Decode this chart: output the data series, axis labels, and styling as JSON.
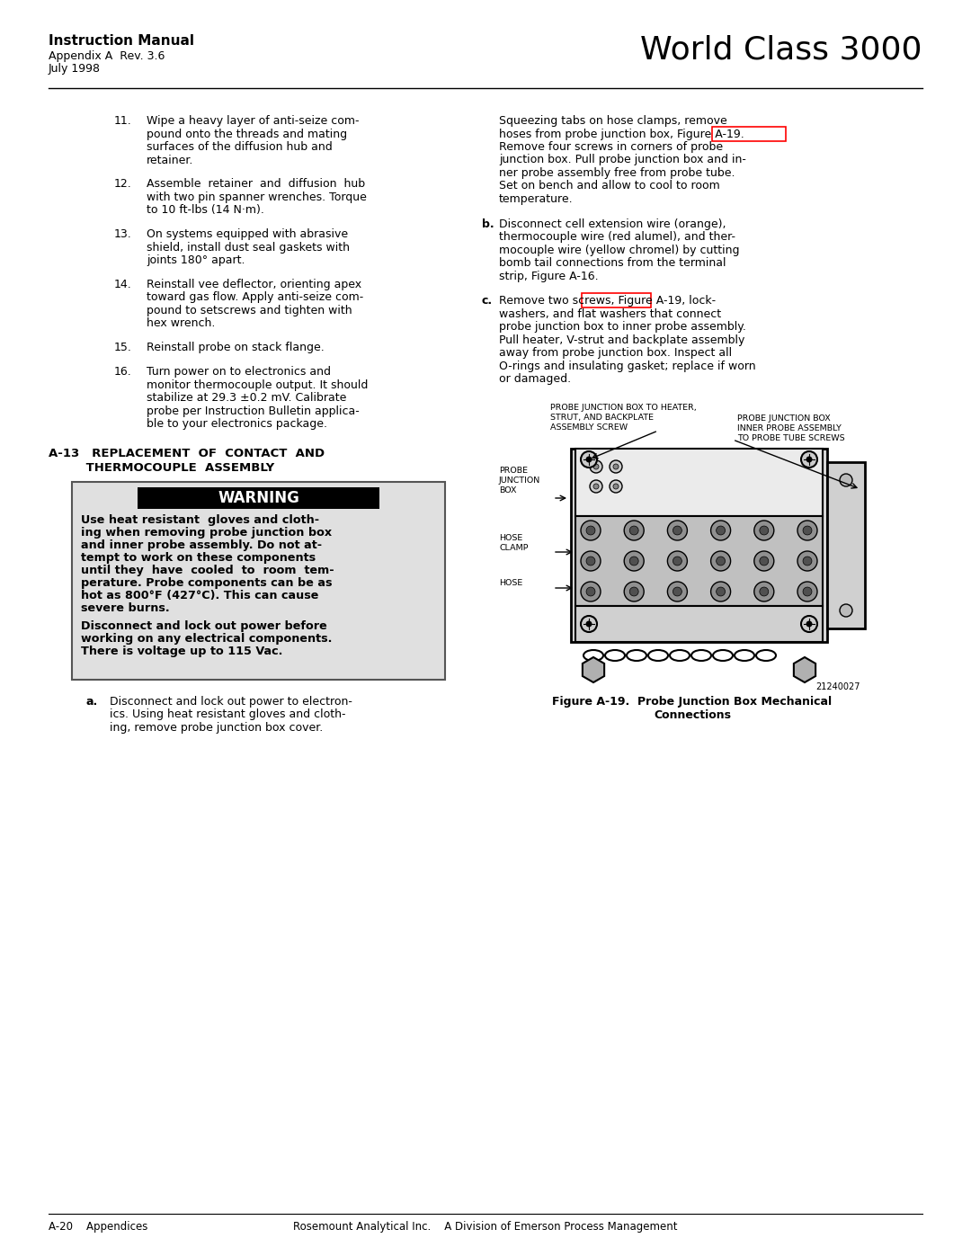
{
  "page_width": 10.8,
  "page_height": 13.97,
  "bg_color": "#ffffff",
  "header": {
    "manual_title": "Instruction Manual",
    "subtitle1": "Appendix A  Rev. 3.6",
    "subtitle2": "July 1998",
    "product": "World Class 3000"
  },
  "footer": {
    "left": "A-20    Appendices",
    "center": "Rosemount Analytical Inc.    A Division of Emerson Process Management"
  },
  "left_col_items": [
    {
      "num": "11.",
      "lines": [
        "Wipe a heavy layer of anti-seize com-",
        "pound onto the threads and mating",
        "surfaces of the diffusion hub and",
        "retainer."
      ]
    },
    {
      "num": "12.",
      "lines": [
        "Assemble  retainer  and  diffusion  hub",
        "with two pin spanner wrenches. Torque",
        "to 10 ft-lbs (14 N·m)."
      ]
    },
    {
      "num": "13.",
      "lines": [
        "On systems equipped with abrasive",
        "shield, install dust seal gaskets with",
        "joints 180° apart."
      ]
    },
    {
      "num": "14.",
      "lines": [
        "Reinstall vee deflector, orienting apex",
        "toward gas flow. Apply anti-seize com-",
        "pound to setscrews and tighten with",
        "hex wrench."
      ]
    },
    {
      "num": "15.",
      "lines": [
        "Reinstall probe on stack flange."
      ]
    },
    {
      "num": "16.",
      "lines": [
        "Turn power on to electronics and",
        "monitor thermocouple output. It should",
        "stabilize at 29.3 ±0.2 mV. Calibrate",
        "probe per Instruction Bulletin applica-",
        "ble to your electronics package."
      ]
    }
  ],
  "section_h1": "A-13   REPLACEMENT  OF  CONTACT  AND",
  "section_h2": "         THERMOCOUPLE  ASSEMBLY",
  "warning_title": "WARNING",
  "warning_lines": [
    "Use heat resistant  gloves and cloth-",
    "ing when removing probe junction box",
    "and inner probe assembly. Do not at-",
    "tempt to work on these components",
    "until they  have  cooled  to  room  tem-",
    "perature. Probe components can be as",
    "hot as 800°F (427°C). This can cause",
    "severe burns."
  ],
  "warning_lines2": [
    "Disconnect and lock out power before",
    "working on any electrical components.",
    "There is voltage up to 115 Vac."
  ],
  "item_a_lines": [
    "Disconnect and lock out power to electron-",
    "ics. Using heat resistant gloves and cloth-",
    "ing, remove probe junction box cover."
  ],
  "intro_lines": [
    "Squeezing tabs on hose clamps, remove",
    "hoses from probe junction box, Figure A-19.",
    "Remove four screws in corners of probe",
    "junction box. Pull probe junction box and in-",
    "ner probe assembly free from probe tube.",
    "Set on bench and allow to cool to room",
    "temperature."
  ],
  "b_lines": [
    "Disconnect cell extension wire (orange),",
    "thermocouple wire (red alumel), and ther-",
    "mocouple wire (yellow chromel) by cutting",
    "bomb tail connections from the terminal",
    "strip, Figure A-16."
  ],
  "c_lines": [
    "Remove two screws, Figure A-19, lock-",
    "washers, and flat washers that connect",
    "probe junction box to inner probe assembly.",
    "Pull heater, V-strut and backplate assembly",
    "away from probe junction box. Inspect all",
    "O-rings and insulating gasket; replace if worn",
    "or damaged."
  ],
  "fig_label_heater": [
    "PROBE JUNCTION BOX TO HEATER,",
    "STRUT, AND BACKPLATE",
    "ASSEMBLY SCREW"
  ],
  "fig_label_inner": [
    "PROBE JUNCTION BOX",
    "INNER PROBE ASSEMBLY",
    "TO PROBE TUBE SCREWS"
  ],
  "fig_label_pjb": [
    "PROBE",
    "JUNCTION",
    "BOX"
  ],
  "fig_label_hose_clamp": [
    "HOSE",
    "CLAMP"
  ],
  "fig_label_hose": "HOSE",
  "figure_number": "21240027",
  "figure_caption_1": "Figure A-19.  Probe Junction Box Mechanical",
  "figure_caption_2": "Connections"
}
